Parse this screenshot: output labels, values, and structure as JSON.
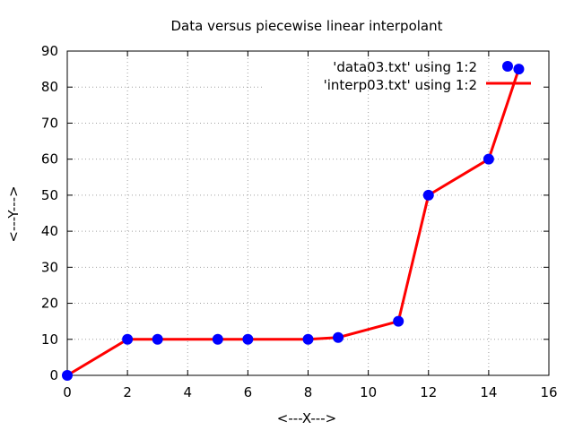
{
  "chart_data": {
    "type": "line",
    "title": "Data versus piecewise linear interpolant",
    "xlabel": "<---X--->",
    "ylabel": "<---Y--->",
    "xlim": [
      0,
      16
    ],
    "ylim": [
      0,
      90
    ],
    "xticks": [
      0,
      2,
      4,
      6,
      8,
      10,
      12,
      14,
      16
    ],
    "yticks": [
      0,
      10,
      20,
      30,
      40,
      50,
      60,
      70,
      80,
      90
    ],
    "grid": true,
    "legend_position": "top-right",
    "series": [
      {
        "name": "'data03.txt' using 1:2",
        "style": "points",
        "color": "#0000ff",
        "x": [
          0,
          2,
          3,
          5,
          6,
          8,
          9,
          11,
          12,
          14,
          15
        ],
        "y": [
          0,
          10,
          10,
          10,
          10,
          10,
          10.5,
          15,
          50,
          60,
          85
        ]
      },
      {
        "name": "'interp03.txt' using 1:2",
        "style": "line",
        "color": "#ff0000",
        "x": [
          0,
          2,
          3,
          5,
          6,
          8,
          9,
          11,
          12,
          14,
          15
        ],
        "y": [
          0,
          10,
          10,
          10,
          10,
          10,
          10.5,
          15,
          50,
          60,
          85
        ]
      }
    ]
  }
}
